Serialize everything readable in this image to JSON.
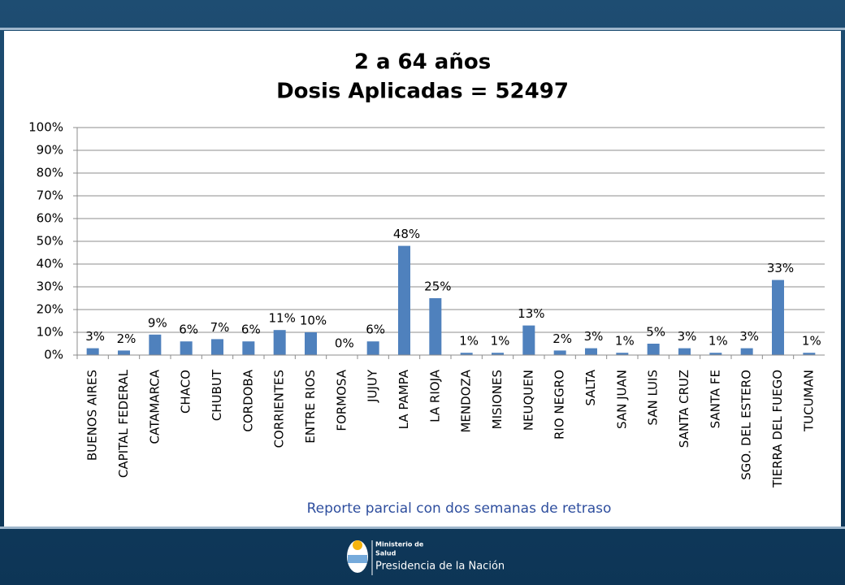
{
  "chart_data": {
    "type": "bar",
    "title": "2 a 64 años",
    "subtitle": "Dosis Aplicadas = 52497",
    "categories": [
      "BUENOS AIRES",
      "CAPITAL FEDERAL",
      "CATAMARCA",
      "CHACO",
      "CHUBUT",
      "CORDOBA",
      "CORRIENTES",
      "ENTRE RIOS",
      "FORMOSA",
      "JUJUY",
      "LA PAMPA",
      "LA RIOJA",
      "MENDOZA",
      "MISIONES",
      "NEUQUEN",
      "RIO NEGRO",
      "SALTA",
      "SAN JUAN",
      "SAN LUIS",
      "SANTA CRUZ",
      "SANTA FE",
      "SGO. DEL ESTERO",
      "TIERRA DEL FUEGO",
      "TUCUMAN"
    ],
    "values": [
      3,
      2,
      9,
      6,
      7,
      6,
      11,
      10,
      0,
      6,
      48,
      25,
      1,
      1,
      13,
      2,
      3,
      1,
      5,
      3,
      1,
      3,
      33,
      1
    ],
    "value_labels": [
      "3%",
      "2%",
      "9%",
      "6%",
      "7%",
      "6%",
      "11%",
      "10%",
      "0%",
      "6%",
      "48%",
      "25%",
      "1%",
      "1%",
      "13%",
      "2%",
      "3%",
      "1%",
      "5%",
      "3%",
      "1%",
      "3%",
      "33%",
      "1%"
    ],
    "color": "#4f81bd",
    "ylim": [
      0,
      100
    ],
    "yticks": [
      {
        "value": 0,
        "label": "0%"
      },
      {
        "value": 10,
        "label": "10%"
      },
      {
        "value": 20,
        "label": "20%"
      },
      {
        "value": 30,
        "label": "30%"
      },
      {
        "value": 40,
        "label": "40%"
      },
      {
        "value": 50,
        "label": "50%"
      },
      {
        "value": 60,
        "label": "60%"
      },
      {
        "value": 70,
        "label": "70%"
      },
      {
        "value": 80,
        "label": "80%"
      },
      {
        "value": 90,
        "label": "90%"
      },
      {
        "value": 100,
        "label": "100%"
      }
    ],
    "grid": true,
    "note": "Reporte parcial con dos semanas de retraso"
  },
  "logo": {
    "line1": "Ministerio de",
    "line2": "Salud",
    "line3": "Presidencia de la Nación"
  }
}
